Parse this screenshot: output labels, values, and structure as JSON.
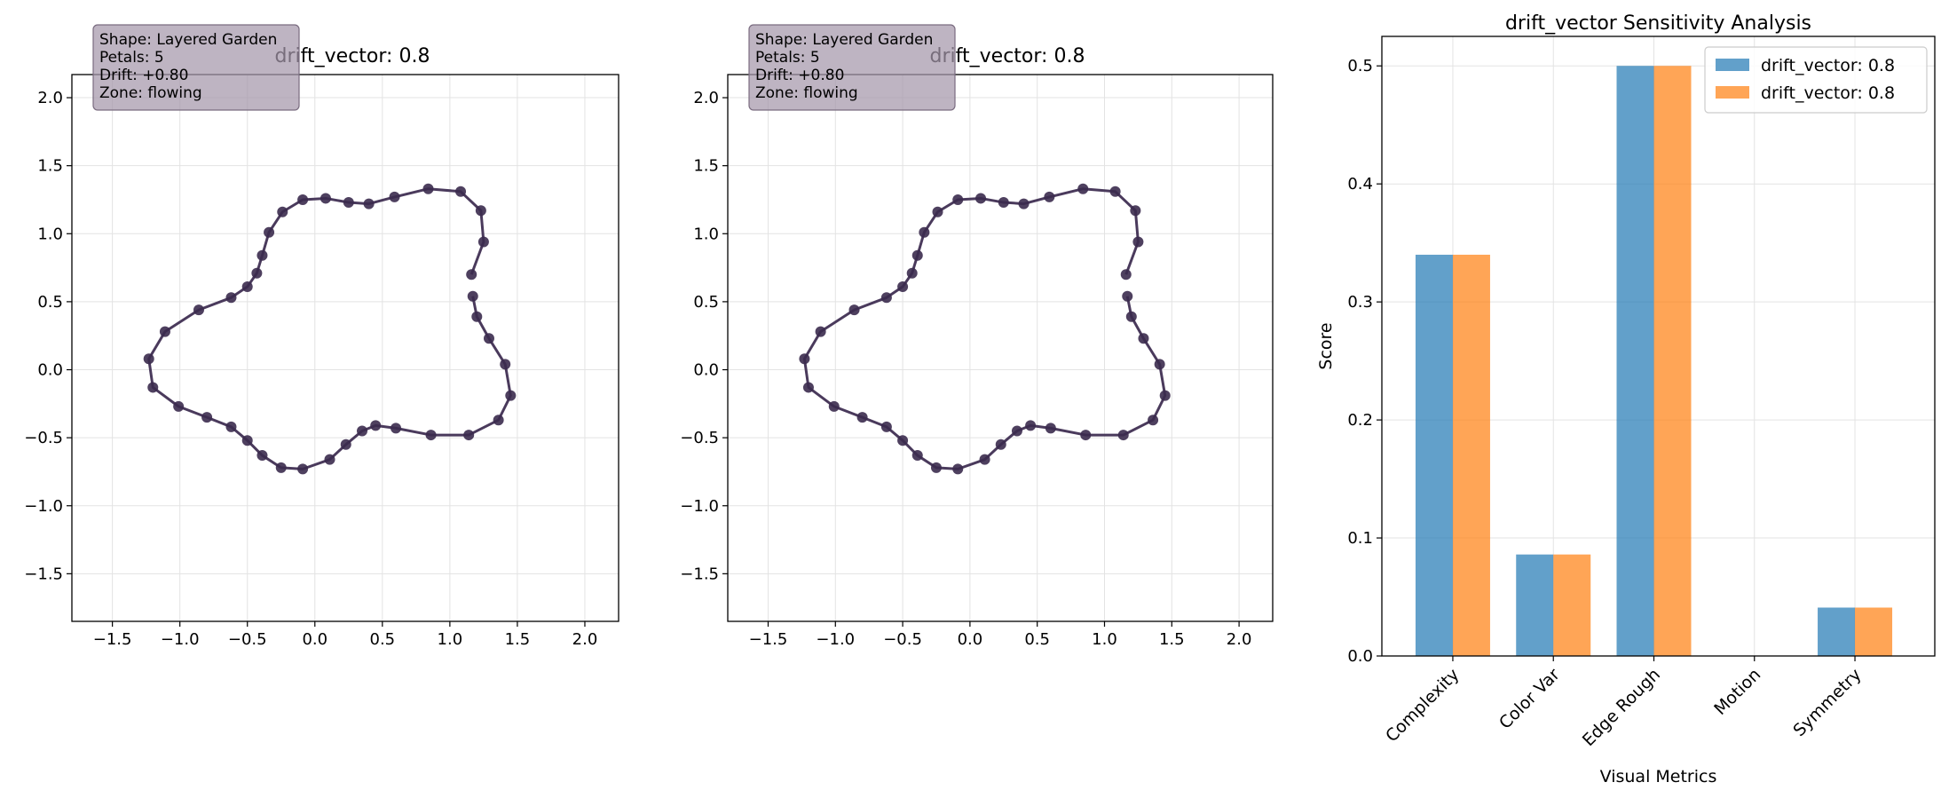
{
  "chart_data": [
    {
      "type": "line",
      "title": "drift_vector: 0.8",
      "xlim": [
        -1.8,
        2.25
      ],
      "ylim": [
        -1.85,
        2.17
      ],
      "xticks": [
        "−1.5",
        "−1.0",
        "−0.5",
        "0.0",
        "0.5",
        "1.0",
        "1.5",
        "2.0"
      ],
      "yticks": [
        "−1.5",
        "−1.0",
        "−0.5",
        "0.0",
        "0.5",
        "1.0",
        "1.5",
        "2.0"
      ],
      "grid": true,
      "info_box": [
        "Shape: Layered Garden",
        "Petals: 5",
        "Drift: +0.80",
        "Zone: flowing"
      ],
      "series": [
        {
          "color": "#3b2b4e",
          "marker": "circle",
          "x": [
            1.17,
            1.2,
            1.29,
            1.41,
            1.45,
            1.36,
            1.14,
            0.86,
            0.6,
            0.45,
            0.35,
            0.23,
            0.11,
            -0.09,
            -0.25,
            -0.39,
            -0.5,
            -0.62,
            -0.8,
            -1.01,
            -1.2,
            -1.23,
            -1.11,
            -0.86,
            -0.62,
            -0.5,
            -0.43,
            -0.39,
            -0.34,
            -0.24,
            -0.09,
            0.08,
            0.25,
            0.4,
            0.59,
            0.84,
            1.08,
            1.23,
            1.25,
            1.16
          ],
          "y": [
            0.54,
            0.39,
            0.23,
            0.04,
            -0.19,
            -0.37,
            -0.48,
            -0.48,
            -0.43,
            -0.41,
            -0.45,
            -0.55,
            -0.66,
            -0.73,
            -0.72,
            -0.63,
            -0.52,
            -0.42,
            -0.35,
            -0.27,
            -0.13,
            0.08,
            0.28,
            0.44,
            0.53,
            0.61,
            0.71,
            0.84,
            1.01,
            1.16,
            1.25,
            1.26,
            1.23,
            1.22,
            1.27,
            1.33,
            1.31,
            1.17,
            0.94,
            0.7
          ]
        }
      ]
    },
    {
      "type": "line",
      "title": "drift_vector: 0.8",
      "xlim": [
        -1.8,
        2.25
      ],
      "ylim": [
        -1.85,
        2.17
      ],
      "xticks": [
        "−1.5",
        "−1.0",
        "−0.5",
        "0.0",
        "0.5",
        "1.0",
        "1.5",
        "2.0"
      ],
      "yticks": [
        "−1.5",
        "−1.0",
        "−0.5",
        "0.0",
        "0.5",
        "1.0",
        "1.5",
        "2.0"
      ],
      "grid": true,
      "info_box": [
        "Shape: Layered Garden",
        "Petals: 5",
        "Drift: +0.80",
        "Zone: flowing"
      ],
      "series": [
        {
          "color": "#3b2b4e",
          "marker": "circle",
          "x": [
            1.17,
            1.2,
            1.29,
            1.41,
            1.45,
            1.36,
            1.14,
            0.86,
            0.6,
            0.45,
            0.35,
            0.23,
            0.11,
            -0.09,
            -0.25,
            -0.39,
            -0.5,
            -0.62,
            -0.8,
            -1.01,
            -1.2,
            -1.23,
            -1.11,
            -0.86,
            -0.62,
            -0.5,
            -0.43,
            -0.39,
            -0.34,
            -0.24,
            -0.09,
            0.08,
            0.25,
            0.4,
            0.59,
            0.84,
            1.08,
            1.23,
            1.25,
            1.16
          ],
          "y": [
            0.54,
            0.39,
            0.23,
            0.04,
            -0.19,
            -0.37,
            -0.48,
            -0.48,
            -0.43,
            -0.41,
            -0.45,
            -0.55,
            -0.66,
            -0.73,
            -0.72,
            -0.63,
            -0.52,
            -0.42,
            -0.35,
            -0.27,
            -0.13,
            0.08,
            0.28,
            0.44,
            0.53,
            0.61,
            0.71,
            0.84,
            1.01,
            1.16,
            1.25,
            1.26,
            1.23,
            1.22,
            1.27,
            1.33,
            1.31,
            1.17,
            0.94,
            0.7
          ]
        }
      ]
    },
    {
      "type": "bar",
      "title": "drift_vector Sensitivity Analysis",
      "xlabel": "Visual Metrics",
      "ylabel": "Score",
      "categories": [
        "Complexity",
        "Color Var",
        "Edge Rough",
        "Motion",
        "Symmetry"
      ],
      "ylim": [
        0,
        0.525
      ],
      "yticks": [
        "0.0",
        "0.1",
        "0.2",
        "0.3",
        "0.4",
        "0.5"
      ],
      "grid": true,
      "legend_position": "top-right",
      "series": [
        {
          "name": "drift_vector: 0.8",
          "color": "#1f77b4",
          "values": [
            0.34,
            0.086,
            0.5,
            0.0,
            0.041
          ]
        },
        {
          "name": "drift_vector: 0.8",
          "color": "#ff7f0e",
          "values": [
            0.34,
            0.086,
            0.5,
            0.0,
            0.041
          ]
        }
      ]
    }
  ]
}
